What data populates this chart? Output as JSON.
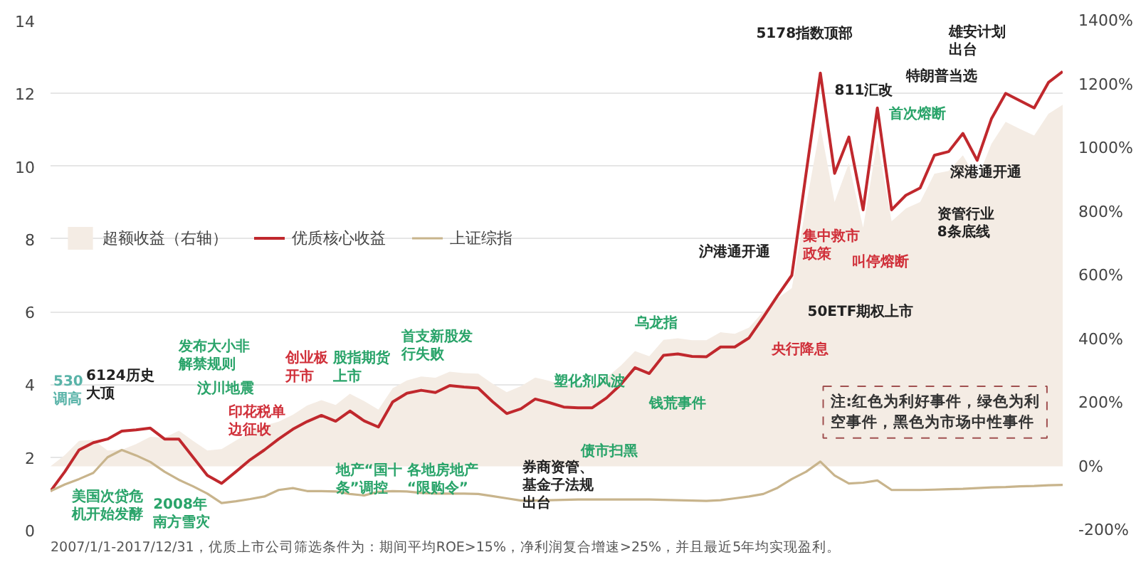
{
  "chart_data": {
    "type": "line",
    "categories": [
      null,
      null,
      null,
      null,
      null,
      null,
      null,
      null,
      null,
      null,
      null,
      null,
      null,
      null,
      null,
      null,
      null,
      null,
      null,
      null,
      null,
      null,
      null,
      null,
      null,
      null,
      null,
      null,
      null,
      null,
      null,
      null,
      null,
      null,
      null,
      null,
      null,
      null,
      null,
      null,
      null,
      null,
      null,
      null,
      null,
      null,
      null,
      null,
      null,
      null,
      null,
      null,
      null,
      null,
      null,
      null,
      null,
      null,
      null,
      null,
      null,
      null,
      null,
      null,
      null,
      null,
      null,
      null,
      null,
      null,
      null,
      null
    ],
    "series": [
      {
        "name": "超额收益（右轴）",
        "type": "area",
        "axis": "y2",
        "color": "#f4ece4",
        "values": [
          0,
          35,
          80,
          83,
          50,
          52,
          70,
          93,
          90,
          112,
          80,
          50,
          54,
          81,
          108,
          128,
          140,
          162,
          191,
          208,
          193,
          228,
          205,
          178,
          245,
          270,
          282,
          278,
          297,
          293,
          291,
          260,
          233,
          252,
          279,
          268,
          255,
          252,
          252,
          279,
          316,
          362,
          346,
          397,
          402,
          396,
          396,
          421,
          416,
          436,
          486,
          528,
          560,
          820,
          1068,
          830,
          952,
          750,
          1024,
          770,
          810,
          830,
          919,
          928,
          977,
          901,
          1013,
          1082,
          1060,
          1039,
          1107,
          1136
        ]
      },
      {
        "name": "优质核心收益",
        "color": "#c0282d",
        "values": [
          1.07,
          1.6,
          2.2,
          2.4,
          2.5,
          2.72,
          2.75,
          2.8,
          2.5,
          2.5,
          2.0,
          1.5,
          1.28,
          1.6,
          1.93,
          2.2,
          2.5,
          2.77,
          2.98,
          3.15,
          2.99,
          3.27,
          3.0,
          2.83,
          3.52,
          3.76,
          3.84,
          3.78,
          3.97,
          3.93,
          3.9,
          3.53,
          3.2,
          3.33,
          3.6,
          3.5,
          3.38,
          3.36,
          3.36,
          3.63,
          4.0,
          4.46,
          4.3,
          4.8,
          4.84,
          4.77,
          4.76,
          5.03,
          5.03,
          5.28,
          5.85,
          6.44,
          7.0,
          9.8,
          12.56,
          9.8,
          10.8,
          8.8,
          11.6,
          8.8,
          9.2,
          9.4,
          10.3,
          10.4,
          10.9,
          10.16,
          11.3,
          12.0,
          11.8,
          11.6,
          12.3,
          12.6
        ]
      },
      {
        "name": "上证综指",
        "color": "#c8b48c",
        "values": [
          1.07,
          1.25,
          1.4,
          1.57,
          2.0,
          2.2,
          2.05,
          1.87,
          1.6,
          1.38,
          1.2,
          1.0,
          0.74,
          0.79,
          0.85,
          0.92,
          1.1,
          1.15,
          1.07,
          1.07,
          1.06,
          0.99,
          0.95,
          1.05,
          1.07,
          1.06,
          1.02,
          1.0,
          1.0,
          1.0,
          0.99,
          0.93,
          0.87,
          0.81,
          0.81,
          0.82,
          0.83,
          0.84,
          0.84,
          0.84,
          0.84,
          0.84,
          0.84,
          0.83,
          0.82,
          0.81,
          0.8,
          0.82,
          0.87,
          0.92,
          0.99,
          1.16,
          1.4,
          1.6,
          1.88,
          1.5,
          1.28,
          1.3,
          1.36,
          1.1,
          1.1,
          1.1,
          1.11,
          1.12,
          1.13,
          1.15,
          1.17,
          1.18,
          1.2,
          1.21,
          1.23,
          1.24
        ]
      }
    ],
    "ylim": [
      0,
      14
    ],
    "yticks": [
      0,
      2,
      4,
      6,
      8,
      10,
      12,
      14
    ],
    "y2lim": [
      -200,
      1400
    ],
    "y2ticks": [
      {
        "value": -200,
        "label": "-200%"
      },
      {
        "value": 0,
        "label": "0%"
      },
      {
        "value": 200,
        "label": "200%"
      },
      {
        "value": 400,
        "label": "400%"
      },
      {
        "value": 600,
        "label": "600%"
      },
      {
        "value": 800,
        "label": "800%"
      },
      {
        "value": 1000,
        "label": "1000%"
      },
      {
        "value": 1200,
        "label": "1200%"
      },
      {
        "value": 1400,
        "label": "1400%"
      }
    ],
    "grid": "y",
    "legend": "top left",
    "tick_labels": "y",
    "line_style": "solid",
    "annotations": [
      "530调高",
      "6124历史大顶",
      "发布大小非解禁规则",
      "汶川地震",
      "印花税单边征收",
      "创业板开市",
      "股指期货上市",
      "首支新股发行失败",
      "塑化剂风波",
      "乌龙指",
      "钱荒事件",
      "债市扫黑",
      "券商资管、基金子法规出台",
      "沪港通开通",
      "央行降息",
      "50ETF期权上市",
      "5178指数顶部",
      "811汇改",
      "集中救市政策",
      "叫停熔断",
      "首次熔断",
      "特朗普当选",
      "雄安计划出台",
      "深港通开通",
      "资管行业8条底线",
      "美国次贷危机开始发酵",
      "2008年南方雪灾",
      "地产“国十条”调控",
      "各地房地产“限购令”",
      "注:红色为利好事件，绿色为利空事件，黑色为市场中性事件",
      "2007/1/1-2017/12/31，优质上市公司筛选条件为：期间平均ROE>15%，净利润复合增速>25%，并且最近5年均实现盈利。"
    ]
  }
}
